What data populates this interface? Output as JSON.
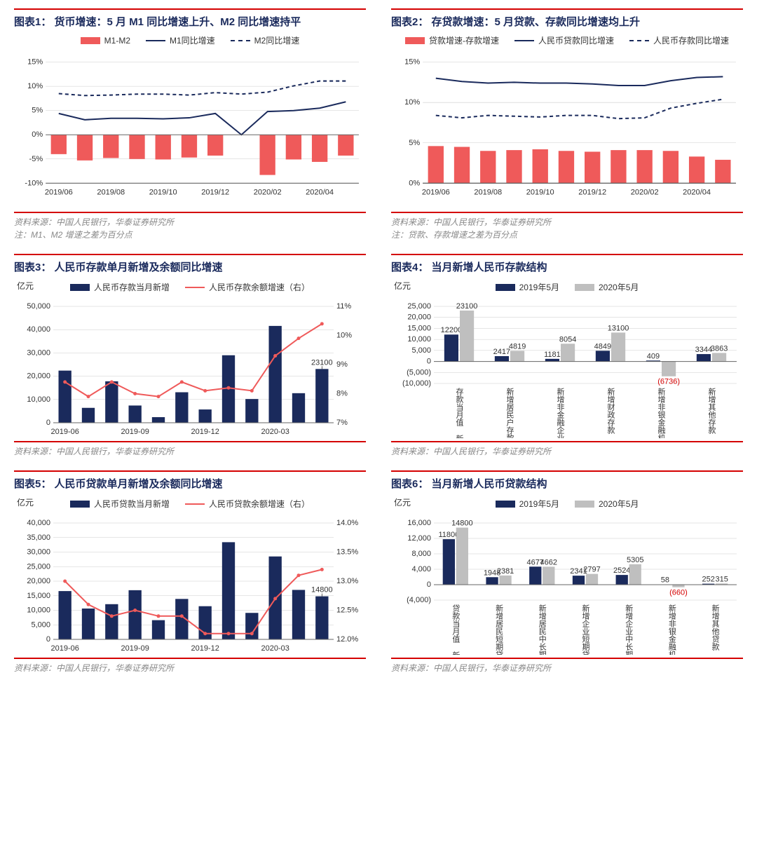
{
  "colors": {
    "red_accent": "#d40000",
    "bar_red": "#ef5a5a",
    "line_navy": "#1a2a5c",
    "line_dash_navy": "#1a2a5c",
    "bar_navy": "#1a2a5c",
    "line_red": "#ef5a5a",
    "grid": "#cccccc",
    "axis": "#888888",
    "grey_bar": "#bfbfbf",
    "text": "#333333",
    "bg": "#ffffff"
  },
  "typography": {
    "title_fontsize": 15,
    "axis_fontsize": 11,
    "legend_fontsize": 12
  },
  "chart1": {
    "title": "图表1：  货币增速：5 月 M1 同比增速上升、M2 同比增速持平",
    "source": "资料来源：中国人民银行，华泰证券研究所",
    "note": "注：M1、M2 增速之差为百分点",
    "type": "bar+line",
    "legend": [
      {
        "label": "M1-M2",
        "kind": "bar",
        "color": "#ef5a5a"
      },
      {
        "label": "M1同比增速",
        "kind": "line",
        "color": "#1a2a5c"
      },
      {
        "label": "M2同比增速",
        "kind": "dash",
        "color": "#1a2a5c"
      }
    ],
    "x_categories": [
      "2019/06",
      "2019/07",
      "2019/08",
      "2019/09",
      "2019/10",
      "2019/11",
      "2019/12",
      "2020/01",
      "2020/02",
      "2020/03",
      "2020/04",
      "2020/05"
    ],
    "x_ticklabels_shown": [
      "2019/06",
      "2019/08",
      "2019/10",
      "2019/12",
      "2020/02",
      "2020/04"
    ],
    "ylim": [
      -10,
      15
    ],
    "ytick_step": 5,
    "ytick_fmt": "pct",
    "bars": [
      -4.0,
      -5.3,
      -4.8,
      -5.0,
      -5.1,
      -4.7,
      -4.3,
      0.0,
      -8.3,
      -5.1,
      -5.6,
      -4.3
    ],
    "line_m1": [
      4.4,
      3.1,
      3.4,
      3.4,
      3.3,
      3.5,
      4.4,
      0.0,
      4.8,
      5.0,
      5.5,
      6.8
    ],
    "line_m2": [
      8.5,
      8.1,
      8.2,
      8.4,
      8.4,
      8.2,
      8.7,
      8.4,
      8.8,
      10.1,
      11.1,
      11.1
    ]
  },
  "chart2": {
    "title": "图表2：  存贷款增速：5 月贷款、存款同比增速均上升",
    "source": "资料来源：中国人民银行，华泰证券研究所",
    "note": "注：贷款、存款增速之差为百分点",
    "type": "bar+line",
    "legend": [
      {
        "label": "贷款增速-存款增速",
        "kind": "bar",
        "color": "#ef5a5a"
      },
      {
        "label": "人民币贷款同比增速",
        "kind": "line",
        "color": "#1a2a5c"
      },
      {
        "label": "人民币存款同比增速",
        "kind": "dash",
        "color": "#1a2a5c"
      }
    ],
    "x_categories": [
      "2019/06",
      "2019/07",
      "2019/08",
      "2019/09",
      "2019/10",
      "2019/11",
      "2019/12",
      "2020/01",
      "2020/02",
      "2020/03",
      "2020/04",
      "2020/05"
    ],
    "x_ticklabels_shown": [
      "2019/06",
      "2019/08",
      "2019/10",
      "2019/12",
      "2020/02",
      "2020/04"
    ],
    "ylim": [
      0,
      15
    ],
    "ytick_step": 5,
    "ytick_fmt": "pct",
    "bars": [
      4.6,
      4.5,
      4.0,
      4.1,
      4.2,
      4.0,
      3.9,
      4.1,
      4.1,
      4.0,
      3.3,
      2.9
    ],
    "line_loan": [
      13.0,
      12.6,
      12.4,
      12.5,
      12.4,
      12.4,
      12.3,
      12.1,
      12.1,
      12.7,
      13.1,
      13.2
    ],
    "line_dep": [
      8.4,
      8.1,
      8.4,
      8.3,
      8.2,
      8.4,
      8.4,
      8.0,
      8.1,
      9.3,
      9.9,
      10.4
    ]
  },
  "chart3": {
    "title": "图表3：  人民币存款单月新增及余额同比增速",
    "source": "资料来源：中国人民银行，华泰证券研究所",
    "ylabel": "亿元",
    "legend": [
      {
        "label": "人民币存款当月新增",
        "kind": "bar",
        "color": "#1a2a5c"
      },
      {
        "label": "人民币存款余额增速（右）",
        "kind": "line",
        "color": "#ef5a5a"
      }
    ],
    "x_categories": [
      "2019-06",
      "2019-07",
      "2019-08",
      "2019-09",
      "2019-10",
      "2019-11",
      "2019-12",
      "2020-01",
      "2020-02",
      "2020-03",
      "2020-04",
      "2020-05"
    ],
    "x_ticklabels_shown": [
      "2019-06",
      "2019-09",
      "2019-12",
      "2020-03"
    ],
    "ylim_left": [
      0,
      50000
    ],
    "ytick_left_step": 10000,
    "ylim_right": [
      7,
      11
    ],
    "ytick_right_step": 1,
    "ytick_right_fmt": "pct",
    "bars": [
      22400,
      6400,
      17800,
      7400,
      2400,
      13100,
      5700,
      29000,
      10200,
      41600,
      12700,
      23100
    ],
    "line": [
      8.4,
      7.9,
      8.4,
      8.0,
      7.9,
      8.4,
      8.1,
      8.2,
      8.1,
      9.3,
      9.9,
      10.4
    ],
    "annot": {
      "label": "23100",
      "index": 11
    }
  },
  "chart4": {
    "title": "图表4：  当月新增人民币存款结构",
    "source": "资料来源：中国人民银行，华泰证券研究所",
    "ylabel": "亿元",
    "legend": [
      {
        "label": "2019年5月",
        "kind": "bar",
        "color": "#1a2a5c"
      },
      {
        "label": "2020年5月",
        "kind": "bar",
        "color": "#bfbfbf"
      }
    ],
    "ylim": [
      -10000,
      25000
    ],
    "yticks": [
      -10000,
      -5000,
      0,
      5000,
      10000,
      15000,
      20000,
      25000
    ],
    "ytick_fmt": "paren1000",
    "categories": [
      "存款当月值 新增人民币",
      "新增居民户存款",
      "新增非金融企业存款",
      "新增财政存款",
      "新增非银金融机构存款",
      "新增其他存款"
    ],
    "series_2019": [
      12200,
      2417,
      1181,
      4849,
      409,
      3344
    ],
    "series_2020": [
      23100,
      4819,
      8054,
      13100,
      -6736,
      3863
    ],
    "labels_2019": [
      "12200",
      "2417",
      "1181",
      "4849",
      "409",
      "3344"
    ],
    "labels_2020": [
      "23100",
      "4819",
      "8054",
      "13100",
      "(6736)",
      "3863"
    ]
  },
  "chart5": {
    "title": "图表5：  人民币贷款单月新增及余额同比增速",
    "source": "资料来源：中国人民银行，华泰证券研究所",
    "ylabel": "亿元",
    "legend": [
      {
        "label": "人民币贷款当月新增",
        "kind": "bar",
        "color": "#1a2a5c"
      },
      {
        "label": "人民币贷款余额增速（右）",
        "kind": "line",
        "color": "#ef5a5a"
      }
    ],
    "x_categories": [
      "2019-06",
      "2019-07",
      "2019-08",
      "2019-09",
      "2019-10",
      "2019-11",
      "2019-12",
      "2020-01",
      "2020-02",
      "2020-03",
      "2020-04",
      "2020-05"
    ],
    "x_ticklabels_shown": [
      "2019-06",
      "2019-09",
      "2019-12",
      "2020-03"
    ],
    "ylim_left": [
      0,
      40000
    ],
    "ytick_left_step": 5000,
    "ylim_right": [
      12.0,
      14.0
    ],
    "ytick_right_step": 0.5,
    "ytick_right_fmt": "pct1",
    "bars": [
      16600,
      10600,
      12100,
      16900,
      6600,
      13900,
      11400,
      33400,
      9100,
      28500,
      17000,
      14800
    ],
    "line": [
      13.0,
      12.6,
      12.4,
      12.5,
      12.4,
      12.4,
      12.1,
      12.1,
      12.1,
      12.7,
      13.1,
      13.2
    ],
    "annot": {
      "label": "14800",
      "index": 11
    }
  },
  "chart6": {
    "title": "图表6：  当月新增人民币贷款结构",
    "source": "资料来源：中国人民银行，华泰证券研究所",
    "ylabel": "亿元",
    "legend": [
      {
        "label": "2019年5月",
        "kind": "bar",
        "color": "#1a2a5c"
      },
      {
        "label": "2020年5月",
        "kind": "bar",
        "color": "#bfbfbf"
      }
    ],
    "ylim": [
      -4000,
      16000
    ],
    "yticks": [
      -4000,
      0,
      4000,
      8000,
      12000,
      16000
    ],
    "ytick_fmt": "paren1000",
    "categories": [
      "贷款当月值 新增人民币",
      "新增居民短期贷款",
      "新增居民中长期贷款+票据",
      "新增企业短期贷款",
      "新增企业中长期贷款",
      "新增非银金融机构贷款",
      "新增其他贷款"
    ],
    "series_2019": [
      11800,
      1948,
      4677,
      2341,
      2524,
      58,
      252
    ],
    "series_2020": [
      14800,
      2381,
      4662,
      2797,
      5305,
      -660,
      315
    ],
    "labels_2019": [
      "11800",
      "1948",
      "4677",
      "2341",
      "2524",
      "58",
      "252"
    ],
    "labels_2020": [
      "14800",
      "2381",
      "4662",
      "2797",
      "5305",
      "(660)",
      "315"
    ]
  }
}
